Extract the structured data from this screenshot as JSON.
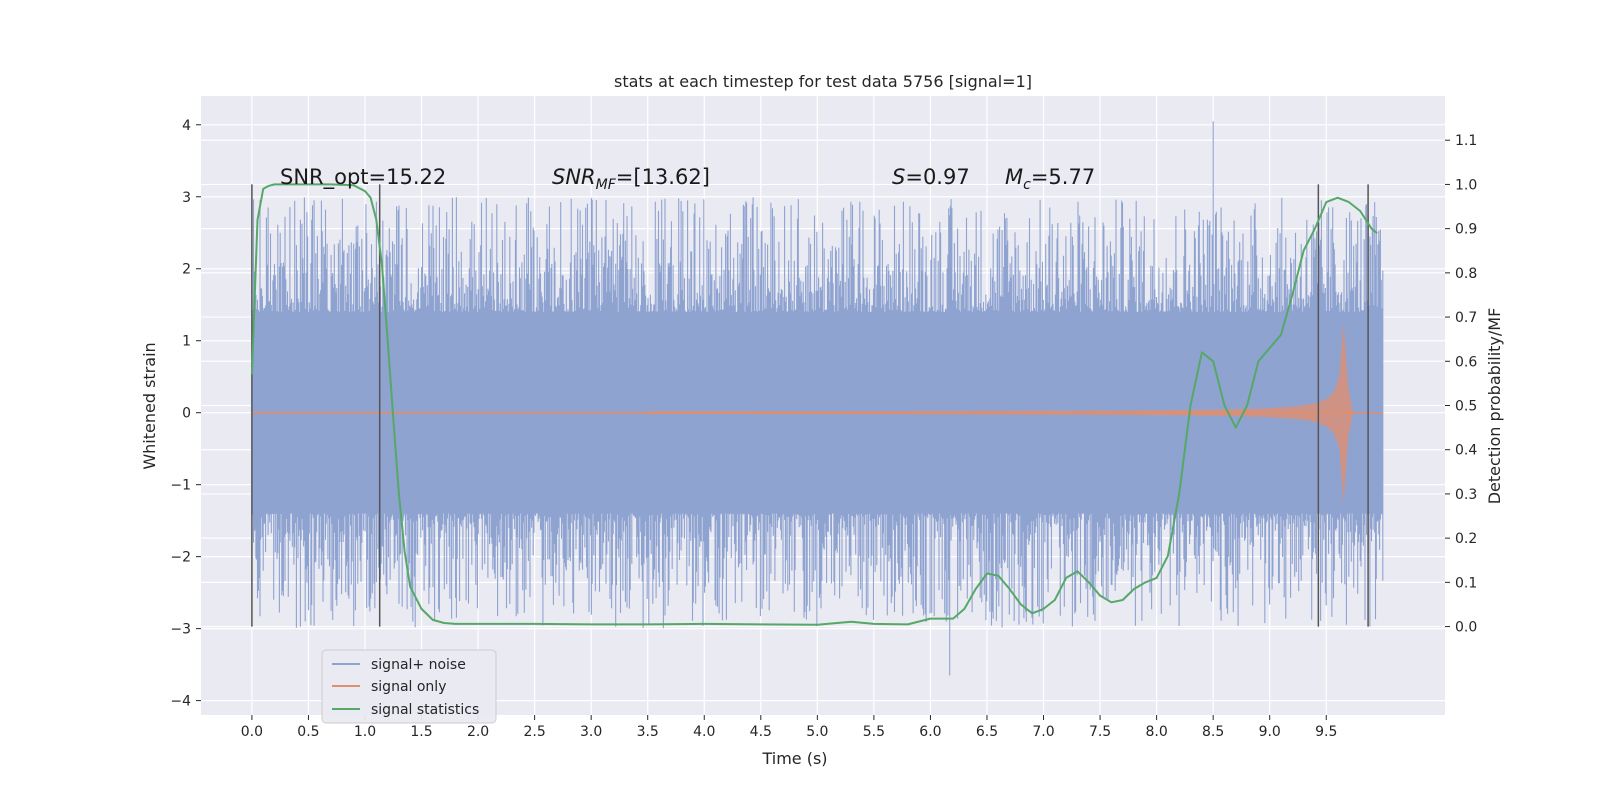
{
  "chart_data": {
    "type": "line",
    "title": "stats at each timestep for test data 5756 [signal=1]",
    "xlabel": "Time (s)",
    "ylabel": "Whitened strain",
    "ylabel_right": "Detection probability/MF",
    "xlim": [
      -0.45,
      10.55
    ],
    "ylim": [
      -4.2,
      4.4
    ],
    "ylim_right": [
      -0.2,
      1.2
    ],
    "x_ticks": [
      "0.0",
      "0.5",
      "1.0",
      "1.5",
      "2.0",
      "2.5",
      "3.0",
      "3.5",
      "4.0",
      "4.5",
      "5.0",
      "5.5",
      "6.0",
      "6.5",
      "7.0",
      "7.5",
      "8.0",
      "8.5",
      "9.0",
      "9.5"
    ],
    "y_ticks": [
      "4",
      "3",
      "2",
      "1",
      "0",
      "−1",
      "−2",
      "−3",
      "−4"
    ],
    "y_right_ticks": [
      "1.1",
      "1.0",
      "0.9",
      "0.8",
      "0.7",
      "0.6",
      "0.5",
      "0.4",
      "0.3",
      "0.2",
      "0.1",
      "0.0"
    ],
    "grid": true,
    "legend_position": "lower-left",
    "annotations": {
      "snr_opt": "SNR_opt=15.22",
      "snr_mf_main": "SNR",
      "snr_mf_sub": "MF",
      "snr_mf_rest": "=[13.62]",
      "s_main": "S",
      "s_rest": "=0.97",
      "mc_main": "M",
      "mc_sub": "c",
      "mc_rest": "=5.77"
    },
    "vertical_markers": [
      0.0,
      1.13,
      9.43,
      9.87
    ],
    "series": [
      {
        "name": "signal+ noise",
        "color": "#8fa3d1",
        "style": "noise",
        "x_range": [
          0.0,
          10.0
        ],
        "typical_amplitude": 1.4,
        "max": 4.05,
        "min": -3.65
      },
      {
        "name": "signal only",
        "color": "#dd8f70",
        "style": "chirp",
        "x_range": [
          0.0,
          10.0
        ],
        "peak_time": 9.67,
        "peak_amplitude": 1.4
      },
      {
        "name": "signal statistics",
        "color": "#55a868",
        "axis": "right",
        "x": [
          0.0,
          0.05,
          0.1,
          0.15,
          0.2,
          0.3,
          0.5,
          0.7,
          0.9,
          1.0,
          1.05,
          1.1,
          1.15,
          1.2,
          1.25,
          1.3,
          1.35,
          1.4,
          1.5,
          1.6,
          1.7,
          1.8,
          2.0,
          2.5,
          3.0,
          3.5,
          4.0,
          4.5,
          5.0,
          5.3,
          5.5,
          5.8,
          6.0,
          6.2,
          6.3,
          6.4,
          6.5,
          6.6,
          6.7,
          6.8,
          6.9,
          7.0,
          7.1,
          7.2,
          7.3,
          7.4,
          7.5,
          7.6,
          7.7,
          7.8,
          7.9,
          8.0,
          8.1,
          8.2,
          8.3,
          8.4,
          8.5,
          8.6,
          8.7,
          8.8,
          8.9,
          9.0,
          9.1,
          9.2,
          9.3,
          9.4,
          9.5,
          9.6,
          9.7,
          9.8,
          9.9,
          9.95
        ],
        "y": [
          0.57,
          0.92,
          0.99,
          0.997,
          1.0,
          1.0,
          1.0,
          1.0,
          0.998,
          0.985,
          0.97,
          0.92,
          0.82,
          0.65,
          0.47,
          0.3,
          0.17,
          0.09,
          0.04,
          0.015,
          0.008,
          0.006,
          0.006,
          0.006,
          0.005,
          0.005,
          0.006,
          0.005,
          0.004,
          0.011,
          0.006,
          0.005,
          0.018,
          0.018,
          0.04,
          0.085,
          0.12,
          0.115,
          0.085,
          0.05,
          0.03,
          0.04,
          0.06,
          0.11,
          0.125,
          0.1,
          0.07,
          0.055,
          0.06,
          0.085,
          0.1,
          0.11,
          0.16,
          0.3,
          0.5,
          0.62,
          0.6,
          0.5,
          0.45,
          0.5,
          0.6,
          0.63,
          0.66,
          0.75,
          0.85,
          0.9,
          0.96,
          0.97,
          0.96,
          0.94,
          0.9,
          0.89
        ]
      }
    ]
  }
}
